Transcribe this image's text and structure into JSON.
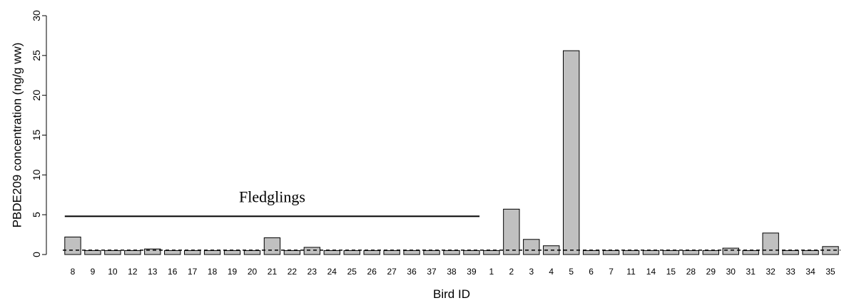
{
  "chart_data": {
    "type": "bar",
    "xlabel": "Bird ID",
    "ylabel": "PBDE209 concentration (ng/g ww)",
    "ylim": [
      0,
      30
    ],
    "yticks": [
      0,
      5,
      10,
      15,
      20,
      25,
      30
    ],
    "grid": false,
    "bar_color": "#c0c0c0",
    "bar_edge_color": "#000000",
    "categories": [
      "8",
      "9",
      "10",
      "12",
      "13",
      "16",
      "17",
      "18",
      "19",
      "20",
      "21",
      "22",
      "23",
      "24",
      "25",
      "26",
      "27",
      "36",
      "37",
      "38",
      "39",
      "1",
      "2",
      "3",
      "4",
      "5",
      "6",
      "7",
      "11",
      "14",
      "15",
      "28",
      "29",
      "30",
      "31",
      "32",
      "33",
      "34",
      "35"
    ],
    "values": [
      2.2,
      0.5,
      0.5,
      0.5,
      0.7,
      0.5,
      0.5,
      0.5,
      0.5,
      0.5,
      2.1,
      0.5,
      0.9,
      0.5,
      0.5,
      0.5,
      0.5,
      0.5,
      0.5,
      0.5,
      0.5,
      0.5,
      5.7,
      1.9,
      1.1,
      25.6,
      0.5,
      0.5,
      0.5,
      0.5,
      0.5,
      0.5,
      0.5,
      0.8,
      0.5,
      2.7,
      0.5,
      0.5,
      1.0
    ],
    "reference_line": {
      "y": 0.55,
      "style": "dashed"
    },
    "annotations": [
      {
        "text": "Fledglings",
        "y": 4.8,
        "from_category": "8",
        "to_category": "39"
      }
    ]
  }
}
